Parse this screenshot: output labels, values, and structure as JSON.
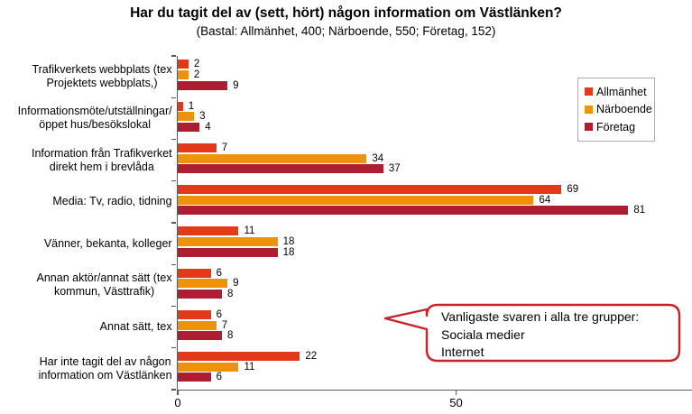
{
  "chart_data": {
    "type": "bar",
    "orientation": "horizontal",
    "title": "Har du tagit del av (sett, hört) någon information om Västlänken?",
    "subtitle": "(Bastal: Allmänhet, 400; Närboende, 550; Företag, 152)",
    "categories": [
      "Trafikverkets webbplats (tex\nProjektets webbplats,)",
      "Informationsmöte/utställningar/\nöppet hus/besökslokal",
      "Information från Trafikverket\ndirekt hem i brevlåda",
      "Media: Tv, radio, tidning",
      "Vänner, bekanta, kolleger",
      "Annan aktör/annat sätt (tex\nkommun, Västtrafik)",
      "Annat sätt, tex",
      "Har inte tagit del av någon\ninformation om Västlänken"
    ],
    "series": [
      {
        "name": "Allmänhet",
        "color": "#E2391B",
        "values": [
          2,
          1,
          7,
          69,
          11,
          6,
          6,
          22
        ]
      },
      {
        "name": "Närboende",
        "color": "#EF920B",
        "values": [
          2,
          3,
          34,
          64,
          18,
          9,
          7,
          11
        ]
      },
      {
        "name": "Företag",
        "color": "#AD1E32",
        "values": [
          9,
          4,
          37,
          81,
          18,
          8,
          8,
          6
        ]
      }
    ],
    "xlim": [
      0,
      92
    ],
    "xticks": [
      0,
      50
    ],
    "xtick_labels": [
      "0",
      "50"
    ],
    "grid": false,
    "legend_position": "top-right",
    "axis_color": "#595959"
  },
  "callout": {
    "lines": [
      "Vanligaste svaren i alla tre grupper:",
      "Sociala medier",
      "Internet"
    ],
    "border_color": "#CB2026"
  }
}
